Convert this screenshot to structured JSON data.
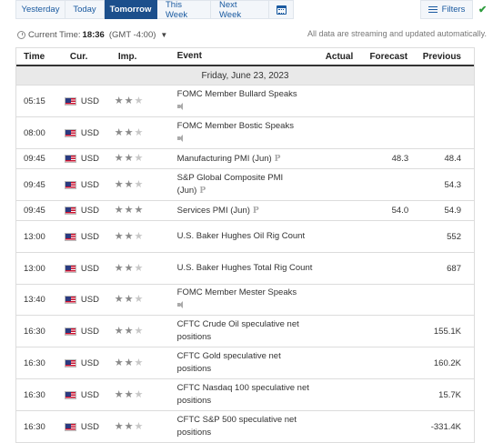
{
  "tabs": [
    {
      "label": "Yesterday",
      "active": false
    },
    {
      "label": "Today",
      "active": false
    },
    {
      "label": "Tomorrow",
      "active": true
    },
    {
      "label": "This Week",
      "active": false
    },
    {
      "label": "Next Week",
      "active": false
    }
  ],
  "filters_label": "Filters",
  "current_time": {
    "label": "Current Time:",
    "value": "18:36",
    "timezone": "(GMT -4:00)"
  },
  "streaming_note": "All data are streaming and updated automatically.",
  "columns": {
    "time": "Time",
    "cur": "Cur.",
    "imp": "Imp.",
    "event": "Event",
    "actual": "Actual",
    "forecast": "Forecast",
    "previous": "Previous"
  },
  "date_header": "Friday, June 23, 2023",
  "events": [
    {
      "time": "05:15",
      "cur": "USD",
      "importance": 2,
      "event": "FOMC Member Bullard Speaks",
      "speech": true,
      "prelim": false,
      "actual": "",
      "forecast": "",
      "previous": ""
    },
    {
      "time": "08:00",
      "cur": "USD",
      "importance": 2,
      "event": "FOMC Member Bostic Speaks",
      "speech": true,
      "prelim": false,
      "actual": "",
      "forecast": "",
      "previous": ""
    },
    {
      "time": "09:45",
      "cur": "USD",
      "importance": 2,
      "event": "Manufacturing PMI (Jun)",
      "speech": false,
      "prelim": true,
      "actual": "",
      "forecast": "48.3",
      "previous": "48.4"
    },
    {
      "time": "09:45",
      "cur": "USD",
      "importance": 2,
      "event": "S&P Global Composite PMI (Jun)",
      "speech": false,
      "prelim": true,
      "actual": "",
      "forecast": "",
      "previous": "54.3"
    },
    {
      "time": "09:45",
      "cur": "USD",
      "importance": 3,
      "event": "Services PMI (Jun)",
      "speech": false,
      "prelim": true,
      "actual": "",
      "forecast": "54.0",
      "previous": "54.9"
    },
    {
      "time": "13:00",
      "cur": "USD",
      "importance": 2,
      "event": "U.S. Baker Hughes Oil Rig Count",
      "speech": false,
      "prelim": false,
      "actual": "",
      "forecast": "",
      "previous": "552"
    },
    {
      "time": "13:00",
      "cur": "USD",
      "importance": 2,
      "event": "U.S. Baker Hughes Total Rig Count",
      "speech": false,
      "prelim": false,
      "actual": "",
      "forecast": "",
      "previous": "687"
    },
    {
      "time": "13:40",
      "cur": "USD",
      "importance": 2,
      "event": "FOMC Member Mester Speaks",
      "speech": true,
      "prelim": false,
      "actual": "",
      "forecast": "",
      "previous": ""
    },
    {
      "time": "16:30",
      "cur": "USD",
      "importance": 2,
      "event": "CFTC Crude Oil speculative net positions",
      "speech": false,
      "prelim": false,
      "actual": "",
      "forecast": "",
      "previous": "155.1K"
    },
    {
      "time": "16:30",
      "cur": "USD",
      "importance": 2,
      "event": "CFTC Gold speculative net positions",
      "speech": false,
      "prelim": false,
      "actual": "",
      "forecast": "",
      "previous": "160.2K"
    },
    {
      "time": "16:30",
      "cur": "USD",
      "importance": 2,
      "event": "CFTC Nasdaq 100 speculative net positions",
      "speech": false,
      "prelim": false,
      "actual": "",
      "forecast": "",
      "previous": "15.7K"
    },
    {
      "time": "16:30",
      "cur": "USD",
      "importance": 2,
      "event": "CFTC S&P 500 speculative net positions",
      "speech": false,
      "prelim": false,
      "actual": "",
      "forecast": "",
      "previous": "-331.4K"
    }
  ]
}
